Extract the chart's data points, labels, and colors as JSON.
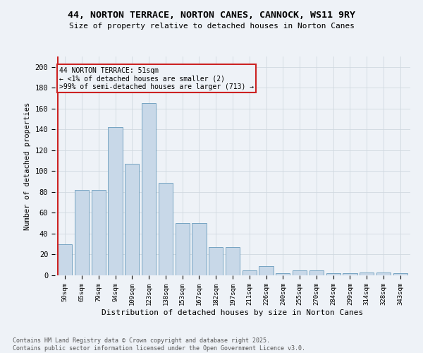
{
  "title": "44, NORTON TERRACE, NORTON CANES, CANNOCK, WS11 9RY",
  "subtitle": "Size of property relative to detached houses in Norton Canes",
  "xlabel": "Distribution of detached houses by size in Norton Canes",
  "ylabel": "Number of detached properties",
  "categories": [
    "50sqm",
    "65sqm",
    "79sqm",
    "94sqm",
    "109sqm",
    "123sqm",
    "138sqm",
    "153sqm",
    "167sqm",
    "182sqm",
    "197sqm",
    "211sqm",
    "226sqm",
    "240sqm",
    "255sqm",
    "270sqm",
    "284sqm",
    "299sqm",
    "314sqm",
    "328sqm",
    "343sqm"
  ],
  "values": [
    30,
    82,
    82,
    142,
    107,
    165,
    89,
    50,
    50,
    27,
    27,
    5,
    9,
    2,
    5,
    5,
    2,
    2,
    3,
    3,
    2
  ],
  "bar_color": "#c8d8e8",
  "bar_edge_color": "#6699bb",
  "highlight_color": "#cc2222",
  "annotation_line1": "44 NORTON TERRACE: 51sqm",
  "annotation_line2": "← <1% of detached houses are smaller (2)",
  "annotation_line3": ">99% of semi-detached houses are larger (713) →",
  "annotation_box_color": "#cc2222",
  "ylim": [
    0,
    210
  ],
  "yticks": [
    0,
    20,
    40,
    60,
    80,
    100,
    120,
    140,
    160,
    180,
    200
  ],
  "footer_line1": "Contains HM Land Registry data © Crown copyright and database right 2025.",
  "footer_line2": "Contains public sector information licensed under the Open Government Licence v3.0.",
  "bg_color": "#eef2f7",
  "grid_color": "#d0d8e0"
}
